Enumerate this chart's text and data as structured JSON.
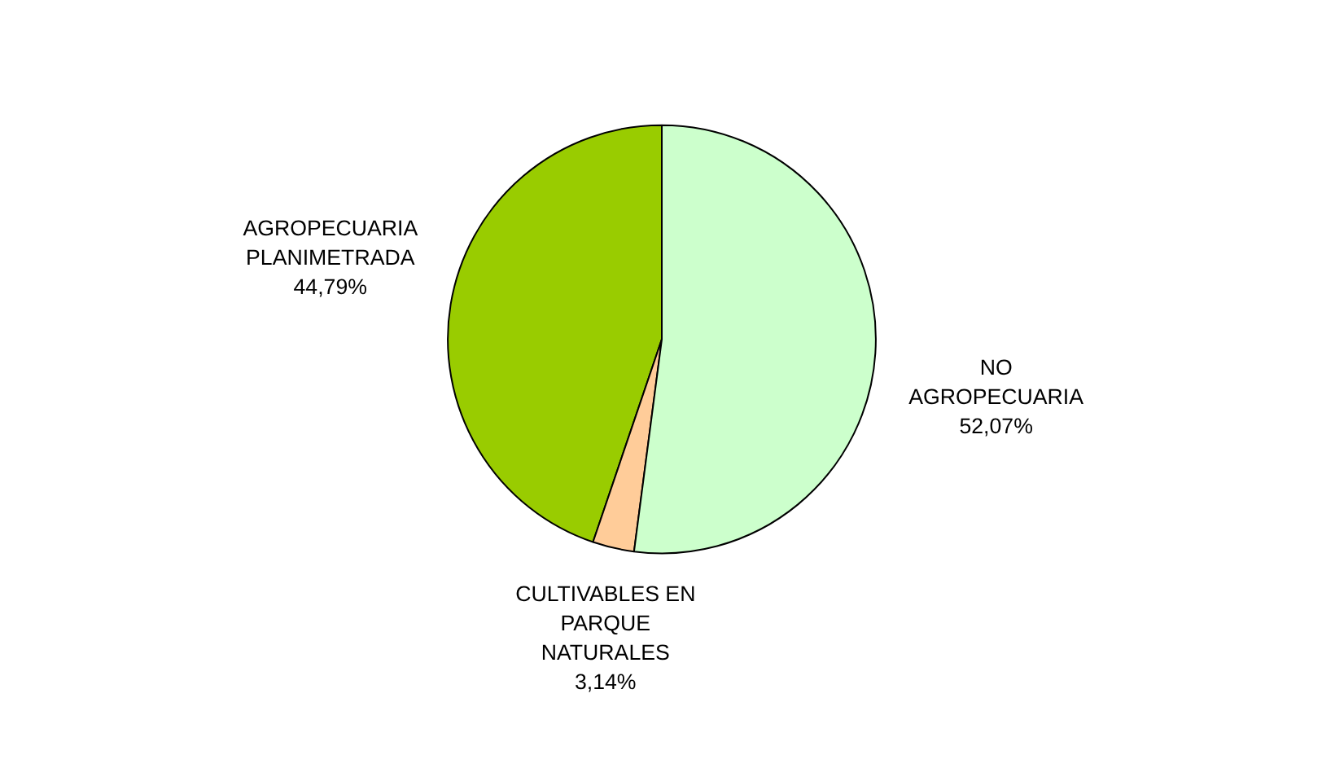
{
  "chart_data": {
    "type": "pie",
    "categories": [
      "AGROPECUARIA PLANIMETRADA",
      "CULTIVABLES EN PARQUE NATURALES",
      "NO AGROPECUARIA"
    ],
    "values": [
      44.79,
      3.14,
      52.07
    ],
    "colors": [
      "#99cc00",
      "#ffcc99",
      "#ccffcc"
    ],
    "value_labels": [
      "44,79%",
      "3,14%",
      "52,07%"
    ]
  }
}
